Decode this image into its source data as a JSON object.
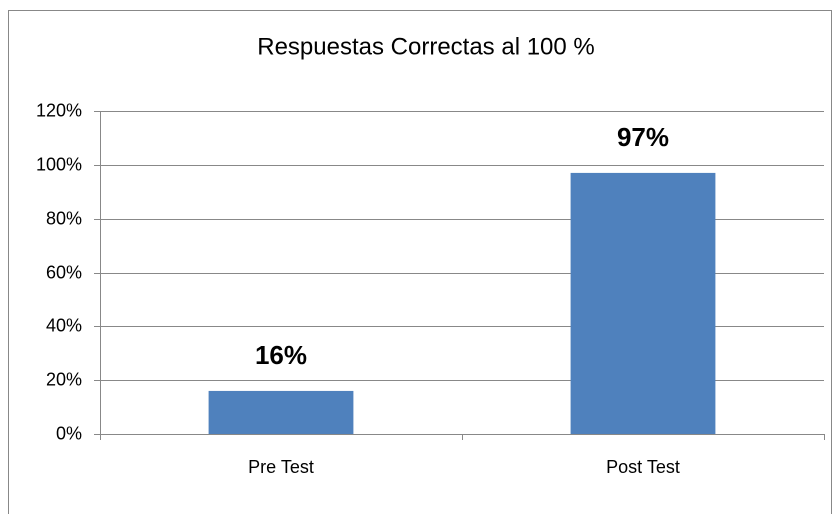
{
  "chart_data": {
    "type": "bar",
    "title": "Respuestas Correctas al 100 %",
    "categories": [
      "Pre Test",
      "Post Test"
    ],
    "values": [
      16,
      97
    ],
    "value_labels": [
      "16%",
      "97%"
    ],
    "color": "#4f81bd",
    "ylim": [
      0,
      120
    ],
    "yticks": [
      {
        "value": 0,
        "label": "0%"
      },
      {
        "value": 20,
        "label": "20%"
      },
      {
        "value": 40,
        "label": "40%"
      },
      {
        "value": 60,
        "label": "60%"
      },
      {
        "value": 80,
        "label": "80%"
      },
      {
        "value": 100,
        "label": "100%"
      },
      {
        "value": 120,
        "label": "120%"
      }
    ],
    "grid": true
  }
}
